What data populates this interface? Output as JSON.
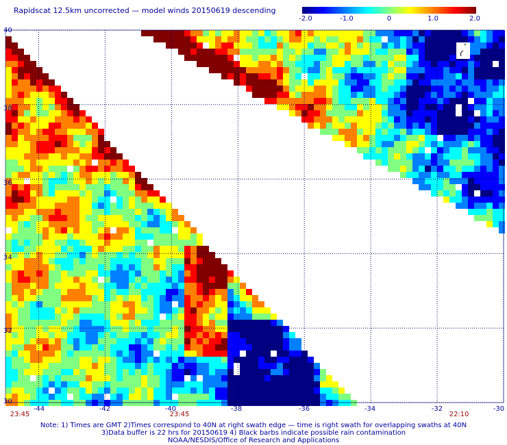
{
  "title": "Rapidscat 12.5km uncorrected — model winds 20150619 descending",
  "colorbar": {
    "ticks": [
      "-2.0",
      "-1.0",
      "0",
      "1.0",
      "2.0"
    ],
    "range": [
      -2.0,
      2.0
    ],
    "colors": [
      "#000080",
      "#0000ff",
      "#0080ff",
      "#00ffff",
      "#80ff80",
      "#ffff00",
      "#ff8000",
      "#ff0000",
      "#800000"
    ]
  },
  "axes": {
    "lat_labels": [
      "40",
      "38",
      "36",
      "34",
      "32",
      "30"
    ],
    "lon_labels": [
      "-44",
      "-42",
      "-40",
      "-38",
      "-36",
      "-34",
      "-32",
      "-30"
    ],
    "lat_range": [
      30,
      40
    ],
    "lon_range": [
      -45,
      -30
    ],
    "grid": "dotted"
  },
  "times": {
    "left": "23:45",
    "middle": "23:45",
    "right": "22:10"
  },
  "notes": [
    "Note: 1) Times are GMT 2)Times correspond to 40N at right swath edge — time is right swath for overlapping swaths at 40N",
    "3)Data buffer is 22 hrs for 20150619 4) Black barbs indicate possible rain contamination",
    "NOAA/NESDIS/Office of Research and Applications"
  ],
  "swaths": [
    {
      "name": "left",
      "region": "below diagonal from lat 40 lon -45 to lat 30.5 lon -34.5",
      "dominant": "mixed, high near edge"
    },
    {
      "name": "upper",
      "region": "above diagonal from lat 40 lon -41 to lat 34.5 lon -30",
      "dominant": "high west, low east"
    }
  ]
}
